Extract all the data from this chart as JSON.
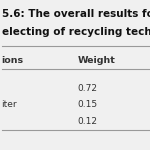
{
  "title_line1": "5.6: The overall results fo",
  "title_line2": "electing of recycling tech",
  "col1_header": "ions",
  "col2_header": "Weight",
  "rows": [
    {
      "col1": "",
      "col2": "0.72"
    },
    {
      "col1": "iter",
      "col2": "0.15"
    },
    {
      "col1": "",
      "col2": "0.12"
    }
  ],
  "background_color": "#f0f0f0",
  "line_color": "#999999",
  "title_color": "#111111",
  "text_color": "#333333",
  "title_fontsize": 7.5,
  "header_fontsize": 6.8,
  "data_fontsize": 6.5
}
